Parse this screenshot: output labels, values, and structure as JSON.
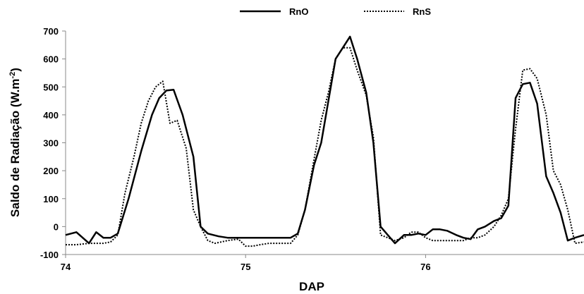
{
  "chart_data": {
    "type": "line",
    "title": "",
    "xlabel": "DAP",
    "ylabel": "Saldo de Radiação (W.m-2)",
    "ylabel_parts": {
      "main": "Saldo de Radiação (W.m",
      "sup": "-2",
      "close": ")"
    },
    "xlim": [
      74,
      76.88
    ],
    "ylim": [
      -100,
      700
    ],
    "xticks": [
      74,
      75,
      76
    ],
    "yticks": [
      -100,
      0,
      100,
      200,
      300,
      400,
      500,
      600,
      700
    ],
    "grid": false,
    "legend_position": "top-center",
    "series": [
      {
        "name": "RnO",
        "style": "solid",
        "color": "#000000",
        "x": [
          74.0,
          74.06,
          74.13,
          74.17,
          74.21,
          74.25,
          74.29,
          74.35,
          74.42,
          74.48,
          74.52,
          74.56,
          74.6,
          74.65,
          74.71,
          74.75,
          74.79,
          74.85,
          74.9,
          74.96,
          75.0,
          75.1,
          75.2,
          75.25,
          75.29,
          75.33,
          75.38,
          75.42,
          75.46,
          75.5,
          75.54,
          75.58,
          75.62,
          75.67,
          75.71,
          75.75,
          75.79,
          75.83,
          75.88,
          75.92,
          75.96,
          76.0,
          76.04,
          76.08,
          76.12,
          76.17,
          76.21,
          76.25,
          76.29,
          76.33,
          76.38,
          76.42,
          76.46,
          76.5,
          76.54,
          76.58,
          76.62,
          76.67,
          76.71,
          76.75,
          76.79,
          76.83,
          76.88
        ],
        "y": [
          -30,
          -20,
          -60,
          -20,
          -40,
          -40,
          -25,
          100,
          270,
          400,
          460,
          487,
          490,
          400,
          250,
          0,
          -25,
          -35,
          -40,
          -40,
          -40,
          -40,
          -40,
          -40,
          -25,
          60,
          220,
          300,
          450,
          600,
          640,
          680,
          600,
          480,
          300,
          0,
          -30,
          -60,
          -30,
          -30,
          -25,
          -30,
          -10,
          -10,
          -15,
          -30,
          -40,
          -45,
          -10,
          0,
          20,
          30,
          75,
          460,
          510,
          515,
          440,
          180,
          120,
          50,
          -50,
          -40,
          -30
        ]
      },
      {
        "name": "RnS",
        "style": "dotted",
        "color": "#000000",
        "x": [
          74.0,
          74.06,
          74.13,
          74.17,
          74.21,
          74.25,
          74.29,
          74.33,
          74.38,
          74.42,
          74.46,
          74.5,
          74.54,
          74.58,
          74.62,
          74.67,
          74.71,
          74.75,
          74.79,
          74.83,
          74.9,
          74.96,
          75.0,
          75.04,
          75.08,
          75.13,
          75.17,
          75.21,
          75.25,
          75.29,
          75.33,
          75.38,
          75.42,
          75.46,
          75.5,
          75.54,
          75.58,
          75.62,
          75.67,
          75.71,
          75.75,
          75.79,
          75.83,
          75.88,
          75.92,
          75.96,
          76.0,
          76.04,
          76.08,
          76.12,
          76.17,
          76.21,
          76.25,
          76.29,
          76.33,
          76.38,
          76.42,
          76.46,
          76.5,
          76.54,
          76.58,
          76.62,
          76.67,
          76.71,
          76.75,
          76.79,
          76.83,
          76.88
        ],
        "y": [
          -65,
          -65,
          -60,
          -60,
          -60,
          -55,
          -30,
          120,
          250,
          370,
          450,
          500,
          520,
          370,
          380,
          280,
          60,
          0,
          -50,
          -60,
          -50,
          -45,
          -70,
          -70,
          -65,
          -60,
          -60,
          -60,
          -60,
          -30,
          60,
          240,
          380,
          480,
          600,
          640,
          640,
          560,
          470,
          320,
          -30,
          -40,
          -50,
          -40,
          -20,
          -20,
          -40,
          -50,
          -50,
          -50,
          -50,
          -50,
          -40,
          -40,
          -30,
          0,
          40,
          100,
          350,
          560,
          565,
          530,
          400,
          200,
          150,
          60,
          -60,
          -55
        ]
      }
    ]
  }
}
